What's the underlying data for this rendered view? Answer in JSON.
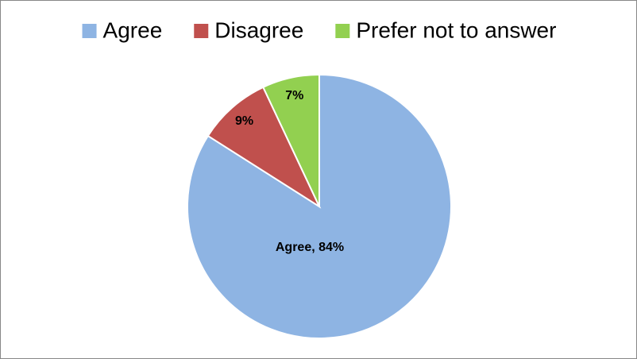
{
  "chart_data": {
    "type": "pie",
    "categories": [
      "Agree",
      "Disagree",
      "Prefer not to answer"
    ],
    "values": [
      84,
      9,
      7
    ],
    "value_labels": [
      "Agree, 84%",
      "9%",
      "7%"
    ],
    "colors": [
      "#8eb4e3",
      "#c0504d",
      "#92d050"
    ],
    "legend": "top"
  }
}
